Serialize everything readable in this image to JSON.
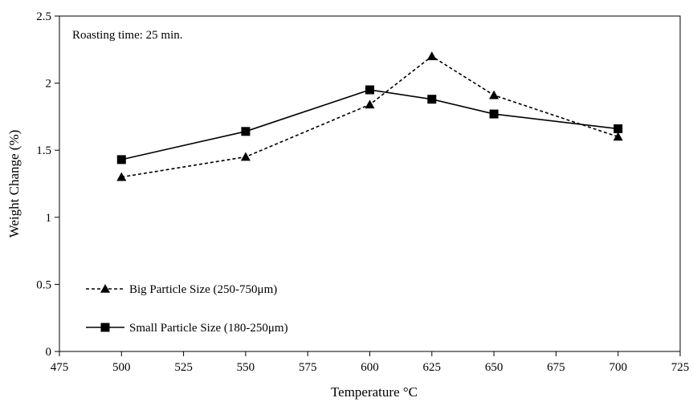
{
  "chart_data": {
    "type": "line",
    "annotation": "Roasting time: 25 min.",
    "xlabel": "Temperature °C",
    "ylabel": "Weight Change (%)",
    "xlim": [
      475,
      725
    ],
    "ylim": [
      0,
      2.5
    ],
    "x_ticks": [
      "475",
      "500",
      "525",
      "550",
      "575",
      "600",
      "625",
      "650",
      "675",
      "700",
      "725"
    ],
    "y_ticks": [
      "0",
      "0.5",
      "1",
      "1.5",
      "2",
      "2.5"
    ],
    "grid": false,
    "legend_position": "bottom-left",
    "series": [
      {
        "name": "Big Particle Size (250-750μm)",
        "marker": "triangle",
        "line_style": "dashed",
        "color": "#000000",
        "x": [
          500,
          550,
          600,
          625,
          650,
          700
        ],
        "y": [
          1.3,
          1.45,
          1.84,
          2.2,
          1.91,
          1.6
        ]
      },
      {
        "name": "Small Particle Size (180-250μm)",
        "marker": "square",
        "line_style": "solid",
        "color": "#000000",
        "x": [
          500,
          550,
          600,
          625,
          650,
          700
        ],
        "y": [
          1.43,
          1.64,
          1.95,
          1.88,
          1.77,
          1.66
        ]
      }
    ]
  }
}
